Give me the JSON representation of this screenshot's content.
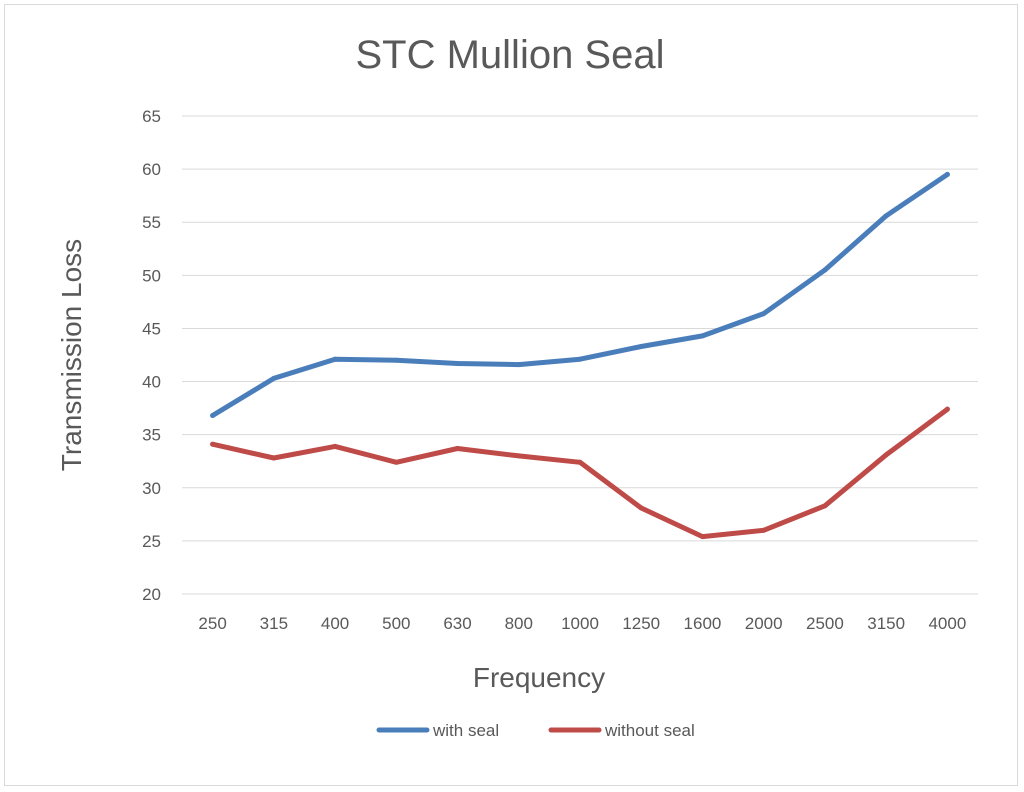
{
  "chart_data": {
    "type": "line",
    "title": "STC Mullion Seal",
    "xlabel": "Frequency",
    "ylabel": "Transmission Loss",
    "categories": [
      "250",
      "315",
      "400",
      "500",
      "630",
      "800",
      "1000",
      "1250",
      "1600",
      "2000",
      "2500",
      "3150",
      "4000"
    ],
    "ylim": [
      20,
      65
    ],
    "yticks": [
      20,
      25,
      30,
      35,
      40,
      45,
      50,
      55,
      60,
      65
    ],
    "grid": true,
    "legend_position": "bottom",
    "series": [
      {
        "name": "with seal",
        "color": "#4a7ebb",
        "values": [
          36.8,
          40.3,
          42.1,
          42.0,
          41.7,
          41.6,
          42.1,
          43.3,
          44.3,
          46.4,
          50.5,
          55.6,
          59.5
        ]
      },
      {
        "name": "without seal",
        "color": "#be4b48",
        "values": [
          34.1,
          32.8,
          33.9,
          32.4,
          33.7,
          33.0,
          32.4,
          28.1,
          25.4,
          26.0,
          28.3,
          33.1,
          37.4
        ]
      }
    ]
  }
}
